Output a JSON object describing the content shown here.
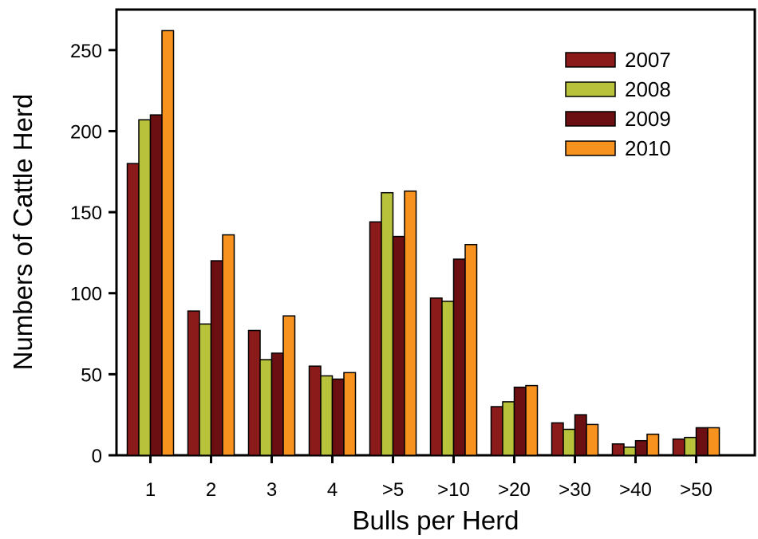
{
  "chart_data": {
    "type": "bar",
    "title": "",
    "xlabel": "Bulls per Herd",
    "ylabel": "Numbers of Cattle Herd",
    "categories": [
      "1",
      "2",
      "3",
      "4",
      ">5",
      ">10",
      ">20",
      ">30",
      ">40",
      ">50"
    ],
    "yticks": [
      0,
      50,
      100,
      150,
      200,
      250
    ],
    "ylim": [
      0,
      275
    ],
    "grid": false,
    "legend_position": "top-right",
    "series": [
      {
        "name": "2007",
        "color": "#8B1A1A",
        "values": [
          180,
          89,
          77,
          55,
          144,
          97,
          30,
          20,
          7,
          10
        ]
      },
      {
        "name": "2008",
        "color": "#B8C23A",
        "values": [
          207,
          81,
          59,
          49,
          162,
          95,
          33,
          16,
          5,
          11
        ]
      },
      {
        "name": "2009",
        "color": "#6B0F12",
        "values": [
          210,
          120,
          63,
          47,
          135,
          121,
          42,
          25,
          9,
          17
        ]
      },
      {
        "name": "2010",
        "color": "#F7921E",
        "values": [
          262,
          136,
          86,
          51,
          163,
          130,
          43,
          19,
          13,
          17
        ]
      }
    ]
  }
}
